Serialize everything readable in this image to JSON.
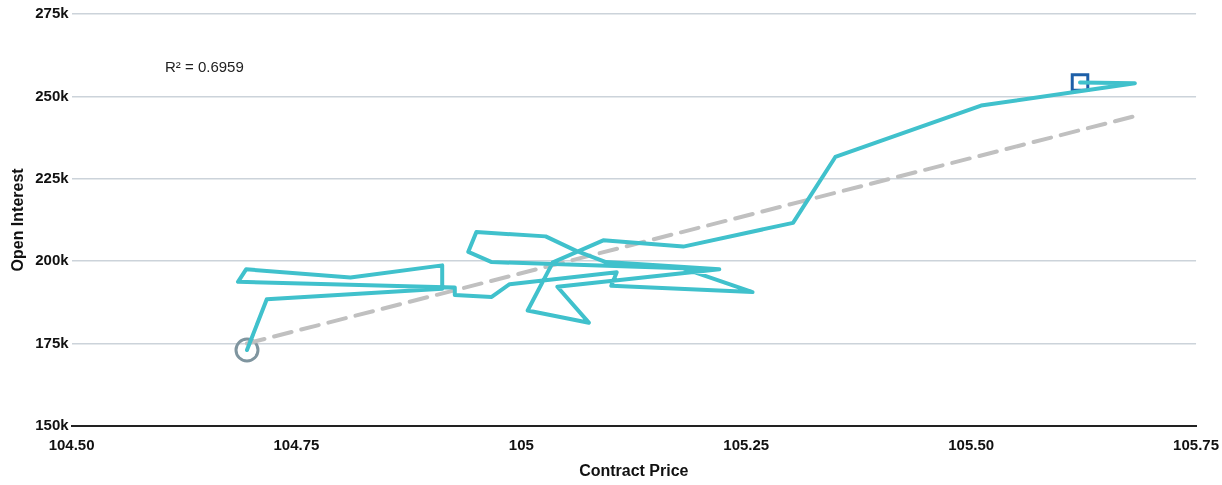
{
  "chart_data": {
    "type": "line",
    "xlabel": "Contract Price",
    "ylabel": "Open Interest",
    "annotations": [
      "R² = 0.6959"
    ],
    "xlim": [
      104.5,
      105.75
    ],
    "xticks": [
      {
        "value": 104.5,
        "label": "104.50"
      },
      104.75,
      105,
      105.25,
      {
        "value": 105.5,
        "label": "105.50"
      },
      105.75
    ],
    "ylim": [
      150000,
      275000
    ],
    "yticks": [
      {
        "value": 150000,
        "label": "150k"
      },
      {
        "value": 175000,
        "label": "175k"
      },
      {
        "value": 200000,
        "label": "200k"
      },
      {
        "value": 225000,
        "label": "225k"
      },
      {
        "value": 250000,
        "label": "250k"
      },
      {
        "value": 275000,
        "label": "275k"
      }
    ],
    "grid": "y",
    "legend": false,
    "series": [
      {
        "type": "line",
        "color": "#40c1cc",
        "marker": "none",
        "line_style": "solid",
        "x": [
          104.695,
          104.717,
          104.912,
          104.912,
          104.81,
          104.694,
          104.685,
          104.926,
          104.926,
          104.967,
          104.987,
          105.106,
          105.1,
          105.257,
          105.18,
          104.967,
          104.941,
          104.95,
          105.027,
          105.061,
          105.094,
          105.22,
          105.04,
          105.075,
          105.007,
          105.035,
          105.091,
          105.18,
          105.302,
          105.349,
          105.511,
          105.682,
          105.621
        ],
        "values": [
          173000,
          188400,
          191600,
          198700,
          195000,
          197500,
          193700,
          192000,
          189700,
          189100,
          193000,
          196600,
          192500,
          190600,
          197800,
          199700,
          202800,
          208800,
          207500,
          203100,
          199700,
          197500,
          192200,
          181300,
          185000,
          199600,
          206300,
          204400,
          211600,
          231600,
          247200,
          254000,
          254200
        ]
      },
      {
        "type": "line",
        "color": "#c0c0c0",
        "marker": "none",
        "line_style": "dashed",
        "x": [
          104.695,
          105.682
        ],
        "values": [
          175000,
          244000
        ]
      },
      {
        "type": "scatter",
        "color": "#7f959f",
        "marker": "circle",
        "x": [
          104.695
        ],
        "values": [
          173000
        ]
      },
      {
        "type": "scatter",
        "color": "#1d5fa8",
        "marker": "square",
        "x": [
          105.621
        ],
        "values": [
          254200
        ]
      }
    ]
  }
}
